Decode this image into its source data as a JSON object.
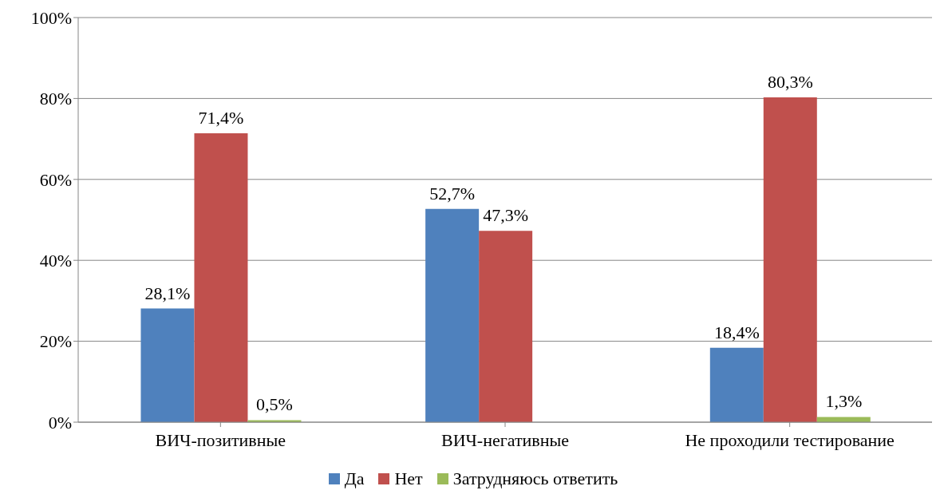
{
  "chart_data": {
    "type": "bar",
    "categories": [
      "ВИЧ-позитивные",
      "ВИЧ-негативные",
      "Не проходили тестирование"
    ],
    "series": [
      {
        "name": "Да",
        "color": "#4f81bd",
        "values": [
          28.1,
          52.7,
          18.4
        ],
        "value_labels": [
          "28,1%",
          "52,7%",
          "18,4%"
        ]
      },
      {
        "name": "Нет",
        "color": "#c0504d",
        "values": [
          71.4,
          47.3,
          80.3
        ],
        "value_labels": [
          "71,4%",
          "47,3%",
          "80,3%"
        ]
      },
      {
        "name": "Затрудняюсь ответить",
        "color": "#9bbb59",
        "values": [
          0.5,
          null,
          1.3
        ],
        "value_labels": [
          "0,5%",
          null,
          "1,3%"
        ]
      }
    ],
    "ylim": [
      0,
      100
    ],
    "yticks": [
      {
        "value": 0,
        "label": "0%"
      },
      {
        "value": 20,
        "label": "20%"
      },
      {
        "value": 40,
        "label": "40%"
      },
      {
        "value": 60,
        "label": "60%"
      },
      {
        "value": 80,
        "label": "80%"
      },
      {
        "value": 100,
        "label": "100%"
      }
    ],
    "grid": "y",
    "legend": "bottom"
  }
}
